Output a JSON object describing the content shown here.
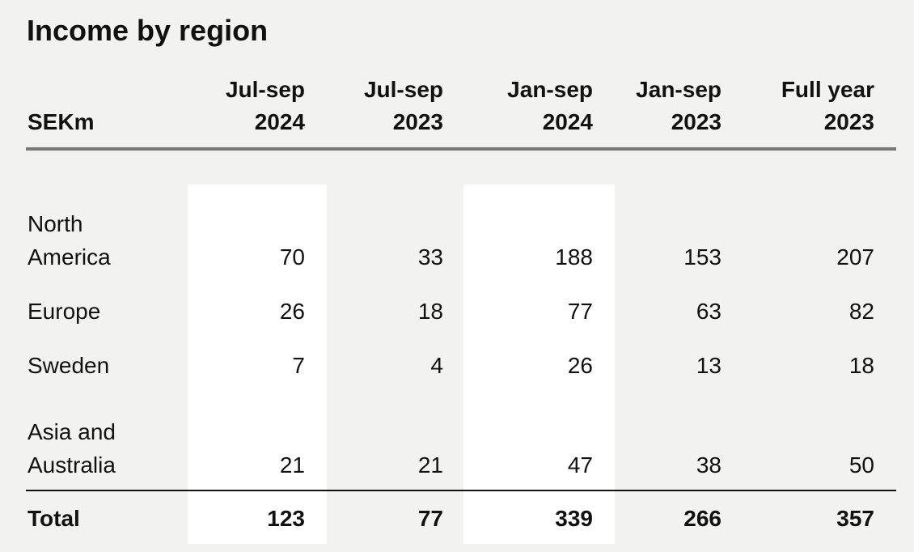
{
  "title": "Income by region",
  "header": {
    "unit": "SEKm",
    "columns": [
      [
        "Jul-sep",
        "2024"
      ],
      [
        "Jul-sep",
        "2023"
      ],
      [
        "Jan-sep",
        "2024"
      ],
      [
        "Jan-sep",
        "2023"
      ],
      [
        "Full year",
        "2023"
      ]
    ]
  },
  "rows": [
    {
      "label": [
        "North",
        "America"
      ],
      "values": [
        70,
        33,
        188,
        153,
        207
      ]
    },
    {
      "label": [
        "Europe"
      ],
      "values": [
        26,
        18,
        77,
        63,
        82
      ]
    },
    {
      "label": [
        "Sweden"
      ],
      "values": [
        7,
        4,
        26,
        13,
        18
      ]
    },
    {
      "label": [
        "Asia and",
        "Australia"
      ],
      "values": [
        21,
        21,
        47,
        38,
        50
      ]
    }
  ],
  "total": {
    "label": "Total",
    "values": [
      123,
      77,
      339,
      266,
      357
    ]
  }
}
